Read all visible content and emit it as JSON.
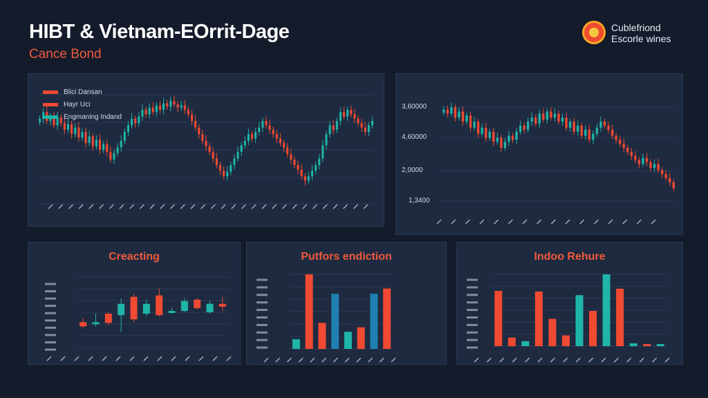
{
  "header": {
    "title": "HIBT & Vietnam-EOrrit-Dage",
    "subtitle": "Cance Bond"
  },
  "brand": {
    "line1": "Cublefriond",
    "line2": "Escorle wines",
    "logo_icon": "coin-logo-icon"
  },
  "colors": {
    "up": "#1fb5a8",
    "down": "#f04a32",
    "blue": "#1f7fb0",
    "background": "#141b2b",
    "panel": "#1e2a40",
    "title_accent": "#f05a3c"
  },
  "chart_data": [
    {
      "type": "candlestick",
      "title": "",
      "legend": {
        "placement": "top-left",
        "entries": [
          {
            "name": "Blici Dansan",
            "color": "#f04a32"
          },
          {
            "name": "Hayr Uci",
            "color": "#f04a32"
          },
          {
            "name": "Engmaning Indand",
            "color": "#1fb5a8"
          }
        ]
      },
      "grid": true,
      "closes": [
        0.72,
        0.78,
        0.7,
        0.74,
        0.66,
        0.73,
        0.68,
        0.62,
        0.67,
        0.58,
        0.64,
        0.55,
        0.6,
        0.5,
        0.56,
        0.47,
        0.53,
        0.44,
        0.49,
        0.42,
        0.35,
        0.41,
        0.46,
        0.52,
        0.6,
        0.66,
        0.72,
        0.68,
        0.74,
        0.8,
        0.76,
        0.82,
        0.78,
        0.84,
        0.8,
        0.86,
        0.83,
        0.88,
        0.85,
        0.82,
        0.84,
        0.8,
        0.76,
        0.7,
        0.64,
        0.58,
        0.52,
        0.47,
        0.42,
        0.36,
        0.3,
        0.25,
        0.2,
        0.24,
        0.3,
        0.36,
        0.42,
        0.48,
        0.52,
        0.58,
        0.54,
        0.6,
        0.64,
        0.7,
        0.66,
        0.62,
        0.58,
        0.54,
        0.5,
        0.46,
        0.4,
        0.35,
        0.3,
        0.26,
        0.2,
        0.16,
        0.2,
        0.25,
        0.3,
        0.36,
        0.48,
        0.58,
        0.66,
        0.62,
        0.7,
        0.78,
        0.74,
        0.8,
        0.76,
        0.72,
        0.68,
        0.64,
        0.6,
        0.66,
        0.7
      ],
      "x_tick_count": 32
    },
    {
      "type": "candlestick",
      "title": "",
      "ytick_labels": [
        "3,60000",
        "4,60000",
        "2,0000",
        "1,3400"
      ],
      "grid": true,
      "closes": [
        0.88,
        0.84,
        0.9,
        0.8,
        0.86,
        0.76,
        0.82,
        0.7,
        0.76,
        0.64,
        0.7,
        0.6,
        0.66,
        0.56,
        0.6,
        0.5,
        0.56,
        0.62,
        0.58,
        0.66,
        0.72,
        0.68,
        0.76,
        0.8,
        0.74,
        0.84,
        0.78,
        0.86,
        0.8,
        0.84,
        0.76,
        0.8,
        0.7,
        0.76,
        0.66,
        0.72,
        0.62,
        0.68,
        0.58,
        0.64,
        0.7,
        0.76,
        0.72,
        0.68,
        0.62,
        0.58,
        0.54,
        0.5,
        0.46,
        0.42,
        0.38,
        0.34,
        0.4,
        0.36,
        0.3,
        0.34,
        0.28,
        0.24,
        0.2,
        0.16,
        0.1
      ],
      "x_tick_count": 16
    },
    {
      "type": "candlestick",
      "title": "Creacting",
      "grid": true,
      "candles": [
        {
          "o": 0.3,
          "c": 0.36,
          "h": 0.42,
          "l": 0.28,
          "dir": "down"
        },
        {
          "o": 0.34,
          "c": 0.36,
          "h": 0.48,
          "l": 0.3,
          "dir": "up"
        },
        {
          "o": 0.35,
          "c": 0.48,
          "h": 0.5,
          "l": 0.32,
          "dir": "down"
        },
        {
          "o": 0.46,
          "c": 0.62,
          "h": 0.7,
          "l": 0.22,
          "dir": "up"
        },
        {
          "o": 0.4,
          "c": 0.72,
          "h": 0.76,
          "l": 0.36,
          "dir": "down"
        },
        {
          "o": 0.48,
          "c": 0.62,
          "h": 0.68,
          "l": 0.44,
          "dir": "up"
        },
        {
          "o": 0.46,
          "c": 0.74,
          "h": 0.84,
          "l": 0.44,
          "dir": "down"
        },
        {
          "o": 0.5,
          "c": 0.52,
          "h": 0.56,
          "l": 0.48,
          "dir": "up"
        },
        {
          "o": 0.52,
          "c": 0.66,
          "h": 0.7,
          "l": 0.5,
          "dir": "up"
        },
        {
          "o": 0.56,
          "c": 0.68,
          "h": 0.7,
          "l": 0.54,
          "dir": "down"
        },
        {
          "o": 0.5,
          "c": 0.62,
          "h": 0.66,
          "l": 0.48,
          "dir": "up"
        },
        {
          "o": 0.58,
          "c": 0.62,
          "h": 0.72,
          "l": 0.52,
          "dir": "down"
        }
      ],
      "x_tick_count": 14,
      "y_tick_count": 10
    },
    {
      "type": "bar",
      "title": "Putfors endiction",
      "grid": true,
      "bars": [
        {
          "v": 0.13,
          "c": "up"
        },
        {
          "v": 1.0,
          "c": "down"
        },
        {
          "v": 0.35,
          "c": "down"
        },
        {
          "v": 0.74,
          "c": "blue"
        },
        {
          "v": 0.23,
          "c": "up"
        },
        {
          "v": 0.29,
          "c": "down"
        },
        {
          "v": 0.74,
          "c": "blue"
        },
        {
          "v": 0.81,
          "c": "down"
        }
      ],
      "x_tick_count": 12,
      "y_tick_count": 10
    },
    {
      "type": "bar",
      "title": "Indoo Rehure",
      "grid": true,
      "bars": [
        {
          "v": 0.77,
          "c": "down"
        },
        {
          "v": 0.12,
          "c": "down"
        },
        {
          "v": 0.07,
          "c": "up"
        },
        {
          "v": 0.76,
          "c": "down"
        },
        {
          "v": 0.38,
          "c": "down"
        },
        {
          "v": 0.15,
          "c": "down"
        },
        {
          "v": 0.71,
          "c": "up"
        },
        {
          "v": 0.49,
          "c": "down"
        },
        {
          "v": 1.0,
          "c": "up"
        },
        {
          "v": 0.8,
          "c": "down"
        },
        {
          "v": 0.04,
          "c": "up"
        },
        {
          "v": 0.03,
          "c": "down"
        },
        {
          "v": 0.03,
          "c": "up"
        }
      ],
      "x_tick_count": 16,
      "y_tick_count": 10
    }
  ]
}
